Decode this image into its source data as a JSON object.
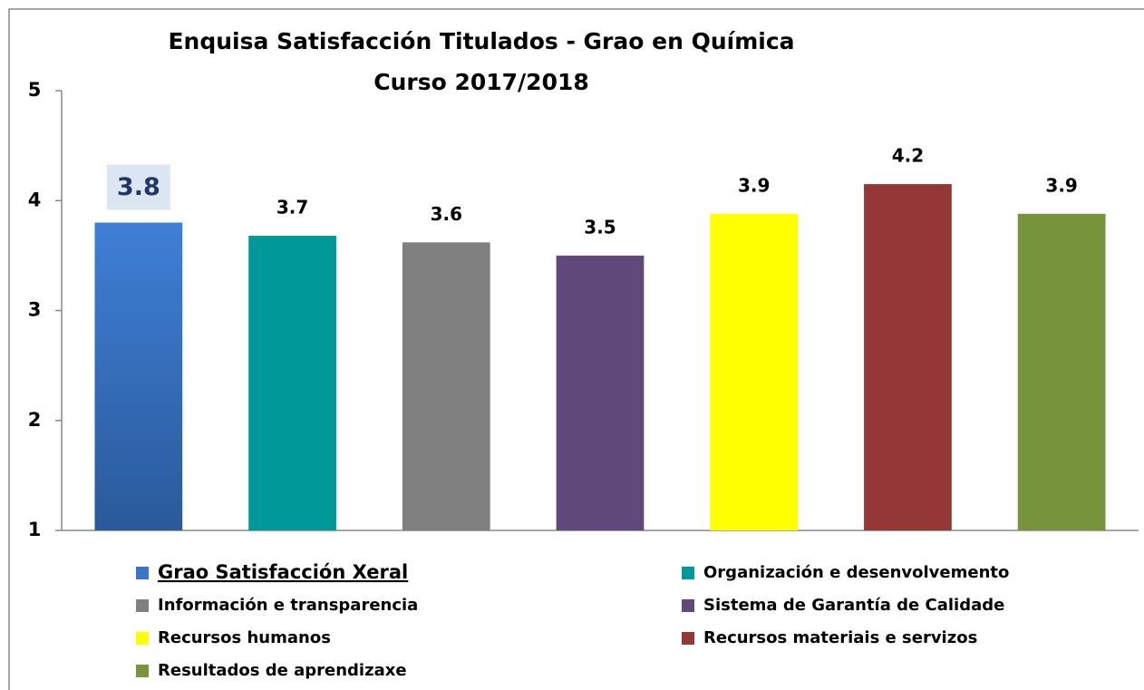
{
  "chart_data": {
    "type": "bar",
    "title": "Enquisa Satisfacción Titulados - Grao en Química",
    "subtitle": "Curso 2017/2018",
    "categories": [
      "Grao Satisfacción Xeral",
      "Organización e desenvolvemento",
      "Información e transparencia",
      "Sistema de Garantía de Calidade",
      "Recursos humanos",
      "Recursos materiais e servizos",
      "Resultados de aprendizaxe"
    ],
    "values": [
      3.8,
      3.68,
      3.62,
      3.5,
      3.88,
      4.15,
      3.88
    ],
    "value_labels": [
      "3.8",
      "3.7",
      "3.6",
      "3.5",
      "3.9",
      "4.2",
      "3.9"
    ],
    "colors": [
      "#3a76c8",
      "#009999",
      "#808080",
      "#604a7b",
      "#ffff00",
      "#953735",
      "#77933c"
    ],
    "ylim": [
      1,
      5
    ],
    "yticks": [
      1,
      2,
      3,
      4,
      5
    ],
    "grid": false
  }
}
